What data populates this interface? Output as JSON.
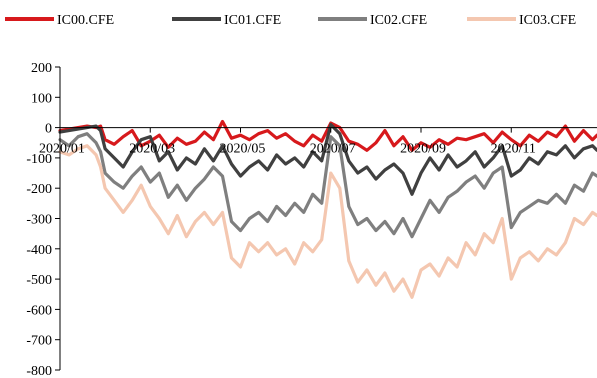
{
  "chart_data": {
    "type": "line",
    "legend_position": "top",
    "grid": false,
    "ylim": [
      -800,
      200
    ],
    "yticks": [
      200,
      100,
      0,
      -100,
      -200,
      -300,
      -400,
      -500,
      -600,
      -700,
      -800
    ],
    "ytick_labels": [
      "200",
      "100",
      "0",
      "-100",
      "-200",
      "-300",
      "-400",
      "-500",
      "-600",
      "-700",
      "-800"
    ],
    "xtick_labels": [
      "2020/01",
      "2020/03",
      "2020/05",
      "2020/07",
      "2020/09",
      "2020/11"
    ],
    "xtick_months": [
      1,
      3,
      5,
      7,
      9,
      11
    ],
    "x_start_month": 1,
    "x_end_month": 12.9,
    "series": [
      {
        "name": "IC00.CFE",
        "color": "#d7191c",
        "width": 3.2,
        "points": [
          [
            1.0,
            -10
          ],
          [
            1.2,
            -5
          ],
          [
            1.4,
            0
          ],
          [
            1.6,
            5
          ],
          [
            1.8,
            0
          ],
          [
            1.9,
            5
          ],
          [
            2.0,
            -40
          ],
          [
            2.2,
            -55
          ],
          [
            2.4,
            -30
          ],
          [
            2.6,
            -10
          ],
          [
            2.8,
            -60
          ],
          [
            3.0,
            -45
          ],
          [
            3.2,
            -25
          ],
          [
            3.4,
            -65
          ],
          [
            3.6,
            -35
          ],
          [
            3.8,
            -55
          ],
          [
            4.0,
            -45
          ],
          [
            4.2,
            -15
          ],
          [
            4.4,
            -40
          ],
          [
            4.6,
            20
          ],
          [
            4.8,
            -35
          ],
          [
            5.0,
            -25
          ],
          [
            5.2,
            -40
          ],
          [
            5.4,
            -20
          ],
          [
            5.6,
            -10
          ],
          [
            5.8,
            -35
          ],
          [
            6.0,
            -20
          ],
          [
            6.2,
            -45
          ],
          [
            6.4,
            -60
          ],
          [
            6.6,
            -25
          ],
          [
            6.8,
            -45
          ],
          [
            7.0,
            15
          ],
          [
            7.2,
            0
          ],
          [
            7.4,
            -45
          ],
          [
            7.6,
            -55
          ],
          [
            7.8,
            -75
          ],
          [
            8.0,
            -50
          ],
          [
            8.2,
            -10
          ],
          [
            8.4,
            -60
          ],
          [
            8.6,
            -30
          ],
          [
            8.8,
            -75
          ],
          [
            9.0,
            -50
          ],
          [
            9.2,
            -65
          ],
          [
            9.4,
            -40
          ],
          [
            9.6,
            -55
          ],
          [
            9.8,
            -35
          ],
          [
            10.0,
            -40
          ],
          [
            10.2,
            -30
          ],
          [
            10.4,
            -20
          ],
          [
            10.6,
            -50
          ],
          [
            10.8,
            -15
          ],
          [
            11.0,
            -40
          ],
          [
            11.2,
            -60
          ],
          [
            11.4,
            -25
          ],
          [
            11.6,
            -45
          ],
          [
            11.8,
            -15
          ],
          [
            12.0,
            -30
          ],
          [
            12.2,
            5
          ],
          [
            12.4,
            -45
          ],
          [
            12.6,
            -10
          ],
          [
            12.8,
            -40
          ],
          [
            12.9,
            -25
          ]
        ]
      },
      {
        "name": "IC01.CFE",
        "color": "#404040",
        "width": 3.2,
        "points": [
          [
            1.0,
            -15
          ],
          [
            1.2,
            -10
          ],
          [
            1.4,
            -5
          ],
          [
            1.6,
            0
          ],
          [
            1.8,
            5
          ],
          [
            1.9,
            -10
          ],
          [
            2.0,
            -70
          ],
          [
            2.2,
            -100
          ],
          [
            2.4,
            -130
          ],
          [
            2.6,
            -80
          ],
          [
            2.8,
            -40
          ],
          [
            3.0,
            -30
          ],
          [
            3.2,
            -110
          ],
          [
            3.4,
            -80
          ],
          [
            3.6,
            -140
          ],
          [
            3.8,
            -100
          ],
          [
            4.0,
            -120
          ],
          [
            4.2,
            -70
          ],
          [
            4.4,
            -110
          ],
          [
            4.6,
            -60
          ],
          [
            4.8,
            -120
          ],
          [
            5.0,
            -160
          ],
          [
            5.2,
            -130
          ],
          [
            5.4,
            -110
          ],
          [
            5.6,
            -140
          ],
          [
            5.8,
            -90
          ],
          [
            6.0,
            -120
          ],
          [
            6.2,
            -100
          ],
          [
            6.4,
            -130
          ],
          [
            6.6,
            -80
          ],
          [
            6.8,
            -110
          ],
          [
            7.0,
            10
          ],
          [
            7.2,
            -20
          ],
          [
            7.4,
            -110
          ],
          [
            7.6,
            -150
          ],
          [
            7.8,
            -130
          ],
          [
            8.0,
            -170
          ],
          [
            8.2,
            -140
          ],
          [
            8.4,
            -120
          ],
          [
            8.6,
            -150
          ],
          [
            8.8,
            -220
          ],
          [
            9.0,
            -150
          ],
          [
            9.2,
            -100
          ],
          [
            9.4,
            -140
          ],
          [
            9.6,
            -90
          ],
          [
            9.8,
            -130
          ],
          [
            10.0,
            -110
          ],
          [
            10.2,
            -80
          ],
          [
            10.4,
            -130
          ],
          [
            10.6,
            -100
          ],
          [
            10.8,
            -60
          ],
          [
            11.0,
            -160
          ],
          [
            11.2,
            -140
          ],
          [
            11.4,
            -100
          ],
          [
            11.6,
            -120
          ],
          [
            11.8,
            -80
          ],
          [
            12.0,
            -90
          ],
          [
            12.2,
            -60
          ],
          [
            12.4,
            -100
          ],
          [
            12.6,
            -70
          ],
          [
            12.8,
            -60
          ],
          [
            12.9,
            -75
          ]
        ]
      },
      {
        "name": "IC02.CFE",
        "color": "#7f7f7f",
        "width": 3.2,
        "points": [
          [
            1.0,
            -40
          ],
          [
            1.2,
            -60
          ],
          [
            1.4,
            -30
          ],
          [
            1.6,
            -20
          ],
          [
            1.8,
            -50
          ],
          [
            1.9,
            -80
          ],
          [
            2.0,
            -150
          ],
          [
            2.2,
            -180
          ],
          [
            2.4,
            -200
          ],
          [
            2.6,
            -160
          ],
          [
            2.8,
            -130
          ],
          [
            3.0,
            -180
          ],
          [
            3.2,
            -150
          ],
          [
            3.4,
            -230
          ],
          [
            3.6,
            -190
          ],
          [
            3.8,
            -240
          ],
          [
            4.0,
            -200
          ],
          [
            4.2,
            -170
          ],
          [
            4.4,
            -130
          ],
          [
            4.6,
            -160
          ],
          [
            4.8,
            -310
          ],
          [
            5.0,
            -340
          ],
          [
            5.2,
            -300
          ],
          [
            5.4,
            -280
          ],
          [
            5.6,
            -310
          ],
          [
            5.8,
            -260
          ],
          [
            6.0,
            -290
          ],
          [
            6.2,
            -250
          ],
          [
            6.4,
            -280
          ],
          [
            6.6,
            -220
          ],
          [
            6.8,
            -250
          ],
          [
            7.0,
            -30
          ],
          [
            7.2,
            -60
          ],
          [
            7.4,
            -260
          ],
          [
            7.6,
            -320
          ],
          [
            7.8,
            -300
          ],
          [
            8.0,
            -340
          ],
          [
            8.2,
            -310
          ],
          [
            8.4,
            -350
          ],
          [
            8.6,
            -300
          ],
          [
            8.8,
            -360
          ],
          [
            9.0,
            -300
          ],
          [
            9.2,
            -240
          ],
          [
            9.4,
            -280
          ],
          [
            9.6,
            -230
          ],
          [
            9.8,
            -210
          ],
          [
            10.0,
            -180
          ],
          [
            10.2,
            -160
          ],
          [
            10.4,
            -200
          ],
          [
            10.6,
            -150
          ],
          [
            10.8,
            -130
          ],
          [
            11.0,
            -330
          ],
          [
            11.2,
            -280
          ],
          [
            11.4,
            -260
          ],
          [
            11.6,
            -240
          ],
          [
            11.8,
            -250
          ],
          [
            12.0,
            -220
          ],
          [
            12.2,
            -250
          ],
          [
            12.4,
            -190
          ],
          [
            12.6,
            -210
          ],
          [
            12.8,
            -150
          ],
          [
            12.9,
            -160
          ]
        ]
      },
      {
        "name": "IC03.CFE",
        "color": "#f4c7b0",
        "width": 3.2,
        "points": [
          [
            1.0,
            -80
          ],
          [
            1.2,
            -90
          ],
          [
            1.4,
            -70
          ],
          [
            1.6,
            -60
          ],
          [
            1.8,
            -90
          ],
          [
            1.9,
            -130
          ],
          [
            2.0,
            -200
          ],
          [
            2.2,
            -240
          ],
          [
            2.4,
            -280
          ],
          [
            2.6,
            -240
          ],
          [
            2.8,
            -190
          ],
          [
            3.0,
            -260
          ],
          [
            3.2,
            -300
          ],
          [
            3.4,
            -350
          ],
          [
            3.6,
            -290
          ],
          [
            3.8,
            -360
          ],
          [
            4.0,
            -310
          ],
          [
            4.2,
            -280
          ],
          [
            4.4,
            -320
          ],
          [
            4.6,
            -280
          ],
          [
            4.8,
            -430
          ],
          [
            5.0,
            -460
          ],
          [
            5.2,
            -380
          ],
          [
            5.4,
            -410
          ],
          [
            5.6,
            -380
          ],
          [
            5.8,
            -420
          ],
          [
            6.0,
            -400
          ],
          [
            6.2,
            -450
          ],
          [
            6.4,
            -380
          ],
          [
            6.6,
            -410
          ],
          [
            6.8,
            -370
          ],
          [
            7.0,
            -150
          ],
          [
            7.2,
            -200
          ],
          [
            7.4,
            -440
          ],
          [
            7.6,
            -510
          ],
          [
            7.8,
            -470
          ],
          [
            8.0,
            -520
          ],
          [
            8.2,
            -480
          ],
          [
            8.4,
            -540
          ],
          [
            8.6,
            -500
          ],
          [
            8.8,
            -560
          ],
          [
            9.0,
            -470
          ],
          [
            9.2,
            -450
          ],
          [
            9.4,
            -490
          ],
          [
            9.6,
            -430
          ],
          [
            9.8,
            -460
          ],
          [
            10.0,
            -380
          ],
          [
            10.2,
            -420
          ],
          [
            10.4,
            -350
          ],
          [
            10.6,
            -380
          ],
          [
            10.8,
            -300
          ],
          [
            11.0,
            -500
          ],
          [
            11.2,
            -430
          ],
          [
            11.4,
            -410
          ],
          [
            11.6,
            -440
          ],
          [
            11.8,
            -400
          ],
          [
            12.0,
            -420
          ],
          [
            12.2,
            -380
          ],
          [
            12.4,
            -300
          ],
          [
            12.6,
            -320
          ],
          [
            12.8,
            -280
          ],
          [
            12.9,
            -290
          ]
        ]
      }
    ]
  }
}
